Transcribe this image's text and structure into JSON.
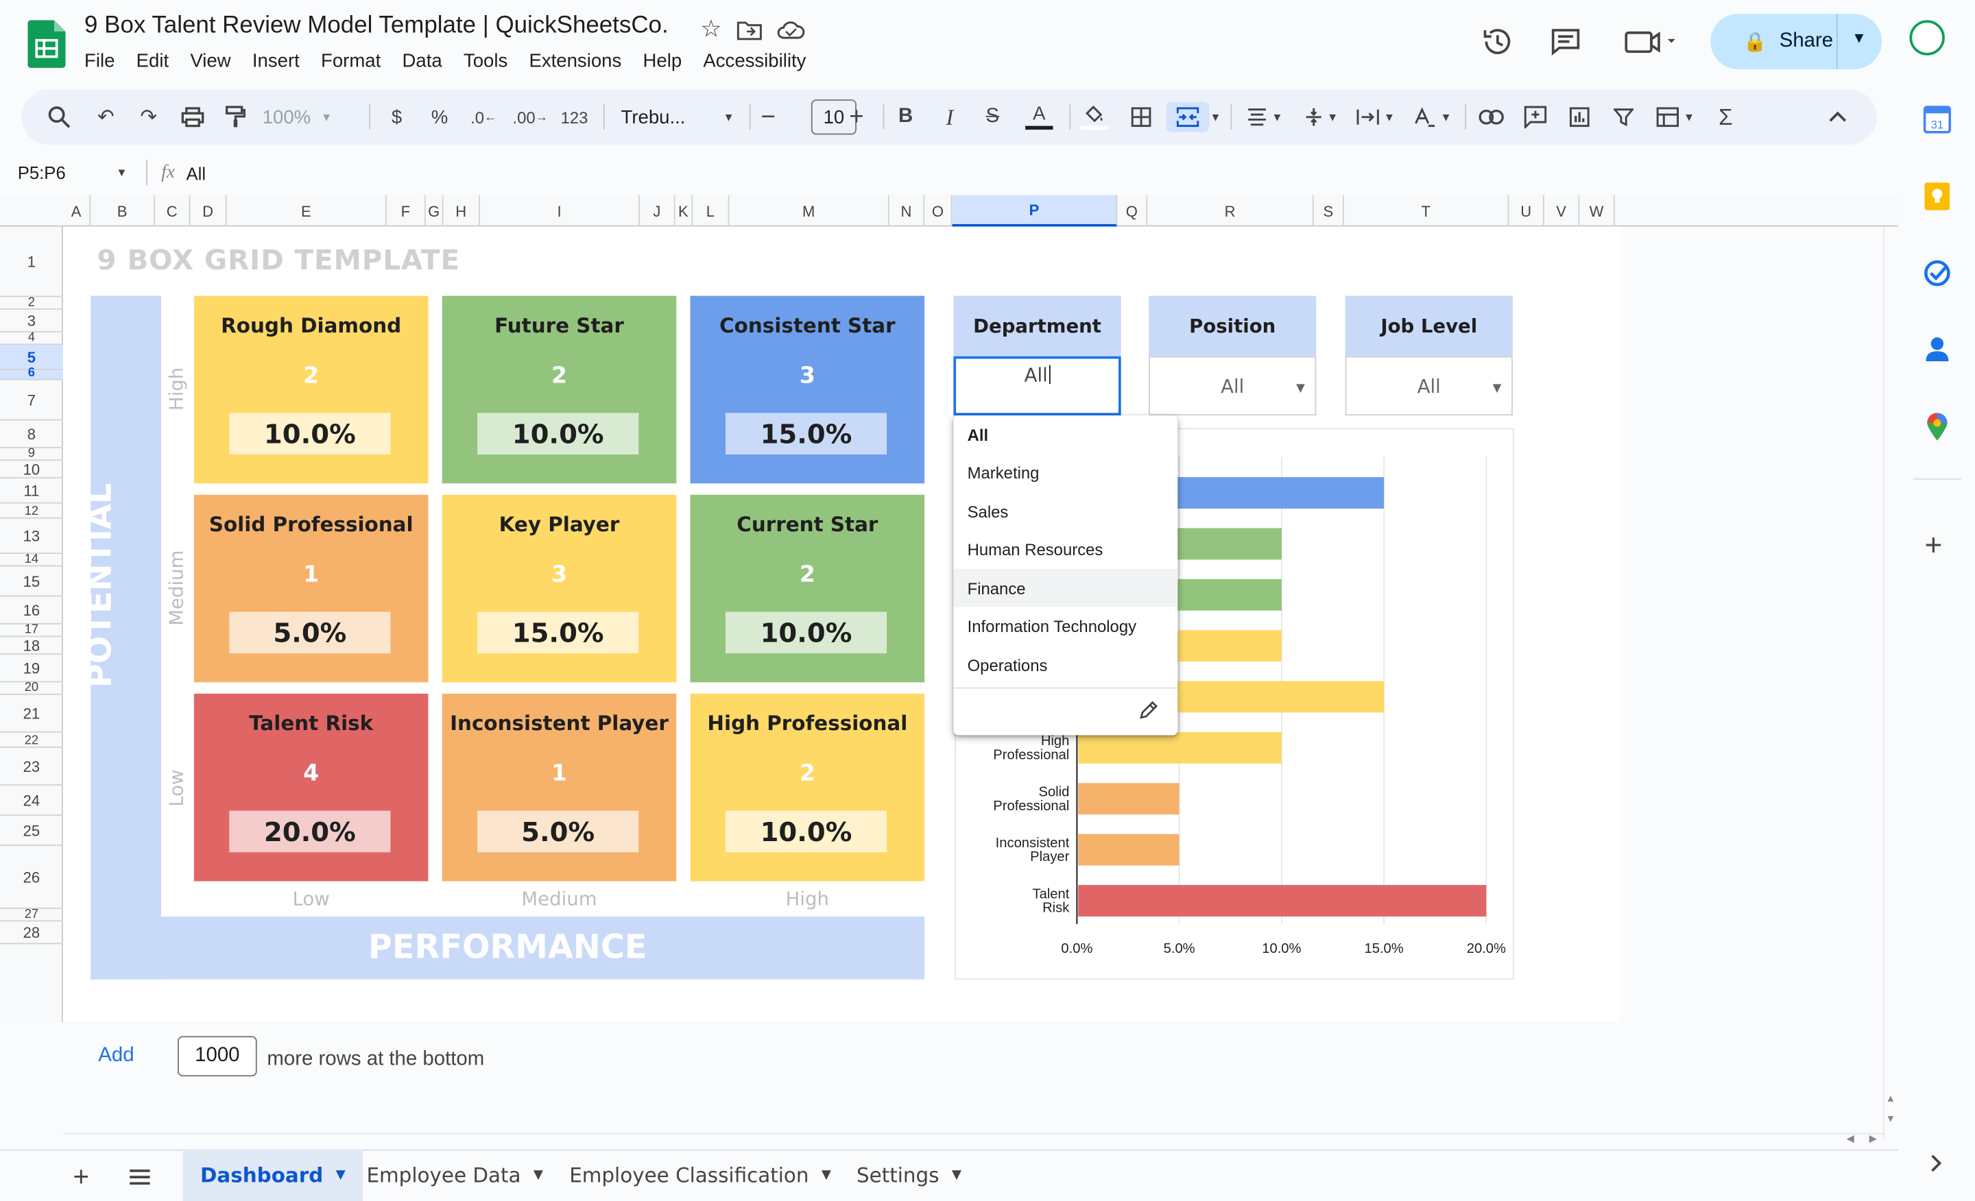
{
  "header": {
    "doc_title": "9 Box Talent Review Model Template | QuickSheetsCo.",
    "menu": [
      "File",
      "Edit",
      "View",
      "Insert",
      "Format",
      "Data",
      "Tools",
      "Extensions",
      "Help",
      "Accessibility"
    ],
    "share_label": "Share"
  },
  "toolbar": {
    "zoom": "100%",
    "currency": "$",
    "percent": "%",
    "dec_decrease": ".0",
    "dec_increase": ".00",
    "number_format": "123",
    "font": "Trebu...",
    "font_size": "10"
  },
  "formula_bar": {
    "name_box": "P5:P6",
    "fx": "fx",
    "value": "All"
  },
  "columns": [
    "A",
    "B",
    "C",
    "D",
    "E",
    "F",
    "G",
    "H",
    "I",
    "J",
    "K",
    "L",
    "M",
    "N",
    "O",
    "P",
    "Q",
    "R",
    "S",
    "T",
    "U",
    "V",
    "W"
  ],
  "rows": [
    "1",
    "2",
    "3",
    "4",
    "5",
    "6",
    "7",
    "8",
    "9",
    "10",
    "11",
    "12",
    "13",
    "14",
    "15",
    "16",
    "17",
    "18",
    "19",
    "20",
    "21",
    "22",
    "23",
    "24",
    "25",
    "26",
    "27",
    "28"
  ],
  "dashboard": {
    "title": "9 BOX GRID TEMPLATE",
    "y_axis_title": "POTENTIAL",
    "x_axis_title": "PERFORMANCE",
    "y_levels": [
      "High",
      "Medium",
      "Low"
    ],
    "x_levels": [
      "Low",
      "Medium",
      "High"
    ],
    "boxes": [
      {
        "title": "Rough Diamond",
        "count": "2",
        "pct": "10.0%",
        "color": "#ffd966",
        "pct_bg": "#fff2cc"
      },
      {
        "title": "Future Star",
        "count": "2",
        "pct": "10.0%",
        "color": "#93c47d",
        "pct_bg": "#d9ead3"
      },
      {
        "title": "Consistent Star",
        "count": "3",
        "pct": "15.0%",
        "color": "#6d9eeb",
        "pct_bg": "#c9daf8"
      },
      {
        "title": "Solid Professional",
        "count": "1",
        "pct": "5.0%",
        "color": "#f6b26b",
        "pct_bg": "#fce5cd"
      },
      {
        "title": "Key Player",
        "count": "3",
        "pct": "15.0%",
        "color": "#ffd966",
        "pct_bg": "#fff2cc"
      },
      {
        "title": "Current Star",
        "count": "2",
        "pct": "10.0%",
        "color": "#93c47d",
        "pct_bg": "#d9ead3"
      },
      {
        "title": "Talent Risk",
        "count": "4",
        "pct": "20.0%",
        "color": "#e06666",
        "pct_bg": "#f4cccc"
      },
      {
        "title": "Inconsistent Player",
        "count": "1",
        "pct": "5.0%",
        "color": "#f6b26b",
        "pct_bg": "#fce5cd"
      },
      {
        "title": "High Professional",
        "count": "2",
        "pct": "10.0%",
        "color": "#ffd966",
        "pct_bg": "#fff2cc"
      }
    ]
  },
  "filters": [
    {
      "label": "Department",
      "value": "All"
    },
    {
      "label": "Position",
      "value": "All"
    },
    {
      "label": "Job Level",
      "value": "All"
    }
  ],
  "dropdown": {
    "options": [
      "All",
      "Marketing",
      "Sales",
      "Human Resources",
      "Finance",
      "Information Technology",
      "Operations"
    ],
    "highlighted": "Finance"
  },
  "chart_data": {
    "type": "bar",
    "orientation": "horizontal",
    "categories": [
      "Consistent Star",
      "Future Star",
      "Current Star",
      "Rough Diamond",
      "Key Player",
      "High Professional",
      "Solid Professional",
      "Inconsistent Player",
      "Talent Risk"
    ],
    "visible_category_labels": [
      "High Professional",
      "Solid Professional",
      "Inconsistent Player",
      "Talent Risk"
    ],
    "values": [
      0.15,
      0.1,
      0.1,
      0.1,
      0.15,
      0.1,
      0.05,
      0.05,
      0.2
    ],
    "colors": [
      "#6d9eeb",
      "#93c47d",
      "#93c47d",
      "#ffd966",
      "#ffd966",
      "#ffd966",
      "#f6b26b",
      "#f6b26b",
      "#e06666"
    ],
    "xlim": [
      0,
      0.2
    ],
    "x_ticks": [
      "0.0%",
      "5.0%",
      "10.0%",
      "15.0%",
      "20.0%"
    ],
    "grid": true,
    "title": "",
    "xlabel": "",
    "ylabel": ""
  },
  "add_rows": {
    "link": "Add",
    "count": "1000",
    "suffix": "more rows at the bottom"
  },
  "tabs": [
    {
      "label": "Dashboard",
      "active": true
    },
    {
      "label": "Employee Data",
      "active": false
    },
    {
      "label": "Employee Classification",
      "active": false
    },
    {
      "label": "Settings",
      "active": false
    }
  ]
}
